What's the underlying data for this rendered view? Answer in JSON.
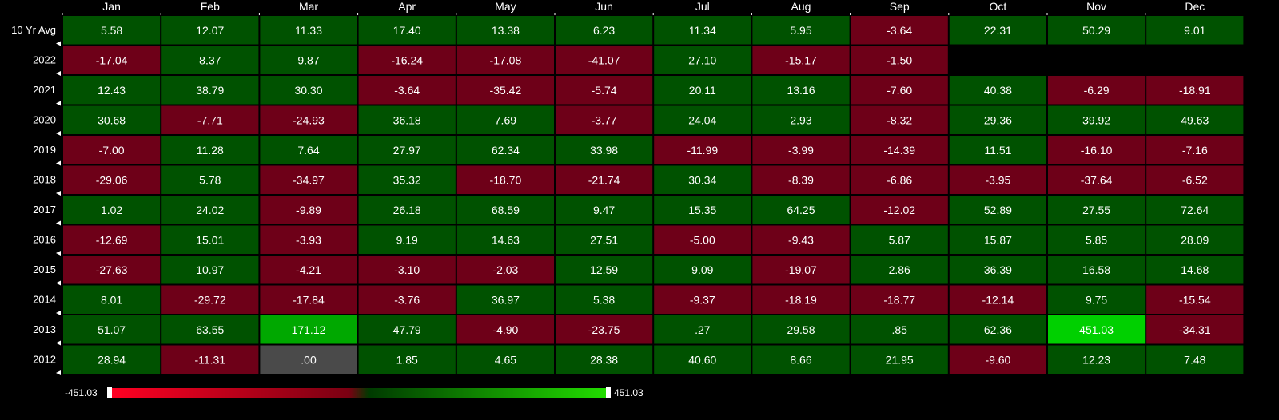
{
  "chart_data": {
    "type": "heatmap",
    "columns": [
      "Jan",
      "Feb",
      "Mar",
      "Apr",
      "May",
      "Jun",
      "Jul",
      "Aug",
      "Sep",
      "Oct",
      "Nov",
      "Dec"
    ],
    "rows": [
      {
        "label": "10 Yr Avg",
        "values": [
          "5.58",
          "12.07",
          "11.33",
          "17.40",
          "13.38",
          "6.23",
          "11.34",
          "5.95",
          "-3.64",
          "22.31",
          "50.29",
          "9.01"
        ]
      },
      {
        "label": "2022",
        "values": [
          "-17.04",
          "8.37",
          "9.87",
          "-16.24",
          "-17.08",
          "-41.07",
          "27.10",
          "-15.17",
          "-1.50",
          null,
          null,
          null
        ]
      },
      {
        "label": "2021",
        "values": [
          "12.43",
          "38.79",
          "30.30",
          "-3.64",
          "-35.42",
          "-5.74",
          "20.11",
          "13.16",
          "-7.60",
          "40.38",
          "-6.29",
          "-18.91"
        ]
      },
      {
        "label": "2020",
        "values": [
          "30.68",
          "-7.71",
          "-24.93",
          "36.18",
          "7.69",
          "-3.77",
          "24.04",
          "2.93",
          "-8.32",
          "29.36",
          "39.92",
          "49.63"
        ]
      },
      {
        "label": "2019",
        "values": [
          "-7.00",
          "11.28",
          "7.64",
          "27.97",
          "62.34",
          "33.98",
          "-11.99",
          "-3.99",
          "-14.39",
          "11.51",
          "-16.10",
          "-7.16"
        ]
      },
      {
        "label": "2018",
        "values": [
          "-29.06",
          "5.78",
          "-34.97",
          "35.32",
          "-18.70",
          "-21.74",
          "30.34",
          "-8.39",
          "-6.86",
          "-3.95",
          "-37.64",
          "-6.52"
        ]
      },
      {
        "label": "2017",
        "values": [
          "1.02",
          "24.02",
          "-9.89",
          "26.18",
          "68.59",
          "9.47",
          "15.35",
          "64.25",
          "-12.02",
          "52.89",
          "27.55",
          "72.64"
        ]
      },
      {
        "label": "2016",
        "values": [
          "-12.69",
          "15.01",
          "-3.93",
          "9.19",
          "14.63",
          "27.51",
          "-5.00",
          "-9.43",
          "5.87",
          "15.87",
          "5.85",
          "28.09"
        ]
      },
      {
        "label": "2015",
        "values": [
          "-27.63",
          "10.97",
          "-4.21",
          "-3.10",
          "-2.03",
          "12.59",
          "9.09",
          "-19.07",
          "2.86",
          "36.39",
          "16.58",
          "14.68"
        ]
      },
      {
        "label": "2014",
        "values": [
          "8.01",
          "-29.72",
          "-17.84",
          "-3.76",
          "36.97",
          "5.38",
          "-9.37",
          "-18.19",
          "-18.77",
          "-12.14",
          "9.75",
          "-15.54"
        ]
      },
      {
        "label": "2013",
        "values": [
          "51.07",
          "63.55",
          "171.12",
          "47.79",
          "-4.90",
          "-23.75",
          ".27",
          "29.58",
          ".85",
          "62.36",
          "451.03",
          "-34.31"
        ]
      },
      {
        "label": "2012",
        "values": [
          "28.94",
          "-11.31",
          ".00",
          "1.85",
          "4.65",
          "28.38",
          "40.60",
          "8.66",
          "21.95",
          "-9.60",
          "12.23",
          "7.48"
        ]
      }
    ],
    "scale": {
      "min": -451.03,
      "max": 451.03,
      "min_label": "-451.03",
      "max_label": "451.03"
    },
    "colors": {
      "positive": "#005200",
      "negative": "#6e0018",
      "positive_bright": "#00d000",
      "mid_green": "#00a800",
      "zero": "#4a4a4a",
      "scale_red": "#ff0022",
      "scale_dark_red": "#7a0012",
      "scale_dark_green": "#003a00",
      "scale_green": "#22dd00",
      "gridline": "#000000"
    }
  }
}
